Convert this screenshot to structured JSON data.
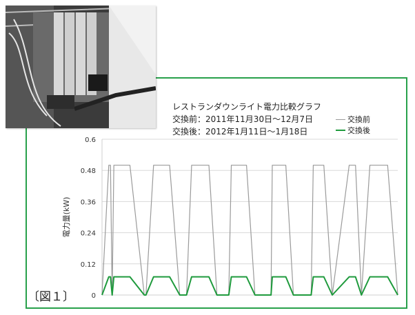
{
  "figure_label": "〔図１〕",
  "chart_data": {
    "type": "line",
    "title": "レストランダウンライト電力比較グラフ",
    "subtitle_lines": [
      "交換前：2011年11月30日～12月7日",
      "交換後：2012年1月11日～1月18日"
    ],
    "ylabel": "電力量(kW)",
    "xlabel": "",
    "ylim": [
      0,
      0.6
    ],
    "yticks": [
      "0",
      "0.12",
      "0.24",
      "0.36",
      "0.48",
      "0.6"
    ],
    "grid": "horizontal",
    "legend_position": "top-right",
    "colors": {
      "before": "#9a9a9a",
      "after": "#1e9a3c",
      "frame": "#27a04a"
    },
    "x": [
      0,
      0.16,
      0.2,
      0.24,
      0.28,
      0.66,
      1,
      1.04,
      1.22,
      1.6,
      1.84,
      2,
      2.12,
      2.53,
      2.72,
      3,
      3.06,
      3.42,
      3.62,
      4,
      4.03,
      4.35,
      4.53,
      4.95,
      5,
      5.25,
      5.45,
      5.85,
      6,
      6.14,
      6.34,
      6.76,
      7
    ],
    "series": [
      {
        "name": "交換前",
        "values": [
          0,
          0.5,
          0.5,
          0,
          0.5,
          0.5,
          0,
          0,
          0.5,
          0.5,
          0,
          0,
          0.5,
          0.5,
          0,
          0,
          0.5,
          0.5,
          0,
          0,
          0.5,
          0.5,
          0,
          0,
          0.5,
          0.5,
          0,
          0.5,
          0.5,
          0,
          0.5,
          0.5,
          0
        ]
      },
      {
        "name": "交換後",
        "values": [
          0,
          0.07,
          0.07,
          0,
          0.07,
          0.07,
          0,
          0,
          0.07,
          0.07,
          0,
          0,
          0.07,
          0.07,
          0,
          0,
          0.07,
          0.07,
          0,
          0,
          0.07,
          0.07,
          0,
          0,
          0.07,
          0.07,
          0,
          0.07,
          0.07,
          0,
          0.07,
          0.07,
          0
        ]
      }
    ]
  }
}
